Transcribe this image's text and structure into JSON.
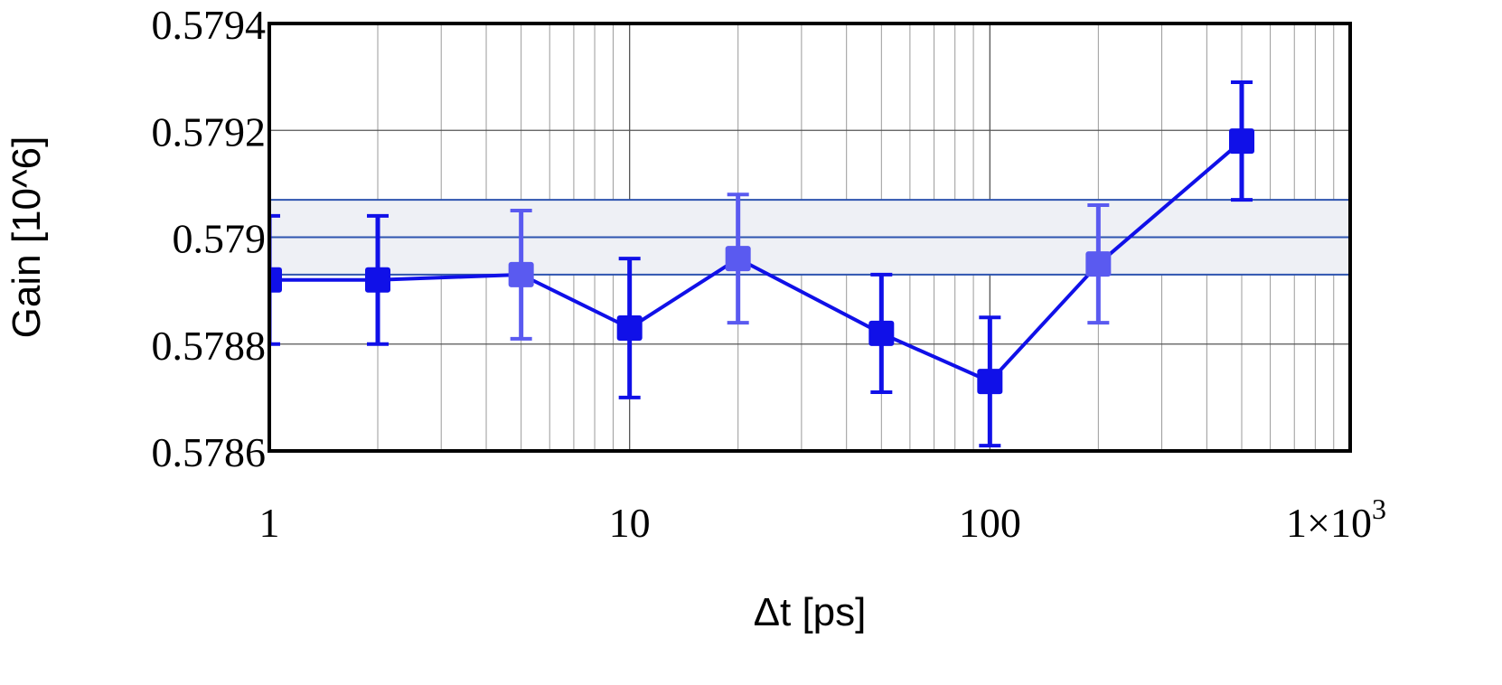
{
  "chart_data": {
    "type": "scatter",
    "title": "",
    "xlabel": "Δt [ps]",
    "ylabel": "Gain [10^6]",
    "x_scale": "log",
    "xlim": [
      1,
      1000
    ],
    "ylim": [
      0.5786,
      0.5794
    ],
    "x_ticks": [
      {
        "value": 1,
        "label": "1"
      },
      {
        "value": 10,
        "label": "10"
      },
      {
        "value": 100,
        "label": "100"
      },
      {
        "value": 1000,
        "label": "1×10",
        "sup": "3"
      }
    ],
    "y_ticks": [
      {
        "value": 0.5786,
        "label": "0.5786"
      },
      {
        "value": 0.5788,
        "label": "0.5788"
      },
      {
        "value": 0.579,
        "label": "0.579"
      },
      {
        "value": 0.5792,
        "label": "0.5792"
      },
      {
        "value": 0.5794,
        "label": "0.5794"
      }
    ],
    "grid": true,
    "band": {
      "center": 0.579,
      "low": 0.57893,
      "high": 0.57907,
      "fill": "#eef0f5",
      "stroke": "#2f55b0"
    },
    "series": [
      {
        "color": "#1010e8",
        "highlight_color": "#5a5af0",
        "points": [
          {
            "x": 1,
            "y": 0.57892,
            "err": 0.00012
          },
          {
            "x": 2,
            "y": 0.57892,
            "err": 0.00012
          },
          {
            "x": 5,
            "y": 0.57893,
            "err": 0.00012
          },
          {
            "x": 10,
            "y": 0.57883,
            "err": 0.00013
          },
          {
            "x": 20,
            "y": 0.57896,
            "err": 0.00012
          },
          {
            "x": 50,
            "y": 0.57882,
            "err": 0.00011
          },
          {
            "x": 100,
            "y": 0.57873,
            "err": 0.00012
          },
          {
            "x": 200,
            "y": 0.57895,
            "err": 0.00011
          },
          {
            "x": 500,
            "y": 0.57918,
            "err": 0.00011
          }
        ]
      }
    ]
  }
}
